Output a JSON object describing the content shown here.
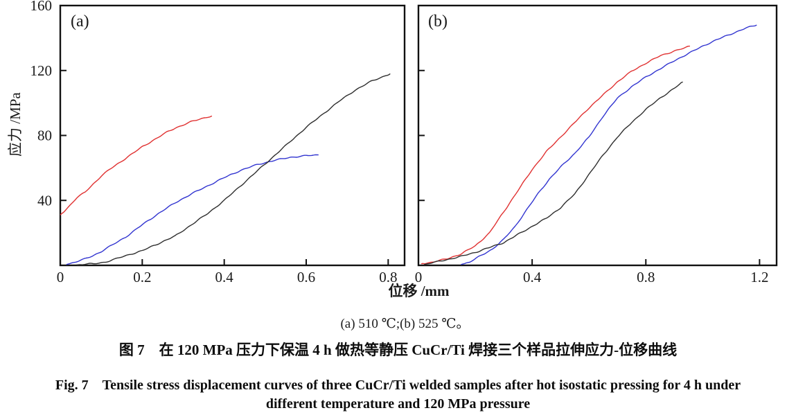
{
  "figure_caption": {
    "subcaption": "(a) 510 ℃;(b) 525 ℃。",
    "caption_zh": "图 7　在 120 MPa 压力下保温 4 h 做热等静压 CuCr/Ti 焊接三个样品拉伸应力-位移曲线",
    "caption_en_line1": "Fig. 7　Tensile stress displacement curves of three CuCr/Ti welded samples after hot isostatic pressing for 4 h under",
    "caption_en_line2": "different temperature and 120 MPa pressure"
  },
  "axes": {
    "ylabel": "应力 /MPa",
    "xlabel": "位移 /mm"
  },
  "colors": {
    "red_curve": "#e03131",
    "blue_curve": "#3134d0",
    "black_curve": "#2e2e2e",
    "axis": "#111111"
  },
  "chart_data": [
    {
      "type": "line",
      "panel": "(a)",
      "condition": "510 ℃",
      "xlabel": "位移 /mm",
      "ylabel": "应力 /MPa",
      "xlim": [
        0,
        0.84
      ],
      "ylim": [
        0,
        160
      ],
      "xticks": [
        0,
        0.2,
        0.4,
        0.6,
        0.8
      ],
      "yticks": [
        40,
        80,
        120,
        160
      ],
      "show_ytick_labels": true,
      "grid": false,
      "legend": "none",
      "series": [
        {
          "name": "red",
          "color": "#e03131",
          "points": [
            [
              0,
              31
            ],
            [
              0.02,
              36
            ],
            [
              0.04,
              41.5
            ],
            [
              0.06,
              45
            ],
            [
              0.08,
              50
            ],
            [
              0.1,
              55
            ],
            [
              0.12,
              59
            ],
            [
              0.14,
              62.5
            ],
            [
              0.16,
              66
            ],
            [
              0.18,
              69.5
            ],
            [
              0.2,
              73
            ],
            [
              0.22,
              76
            ],
            [
              0.24,
              79
            ],
            [
              0.26,
              82
            ],
            [
              0.28,
              84.5
            ],
            [
              0.3,
              86.5
            ],
            [
              0.32,
              88.5
            ],
            [
              0.34,
              90
            ],
            [
              0.36,
              91.5
            ],
            [
              0.37,
              92
            ]
          ]
        },
        {
          "name": "blue",
          "color": "#3134d0",
          "points": [
            [
              0.015,
              0.5
            ],
            [
              0.05,
              3
            ],
            [
              0.08,
              6
            ],
            [
              0.1,
              8.5
            ],
            [
              0.13,
              13
            ],
            [
              0.16,
              17.5
            ],
            [
              0.2,
              25
            ],
            [
              0.24,
              32
            ],
            [
              0.28,
              38.5
            ],
            [
              0.32,
              44
            ],
            [
              0.36,
              49
            ],
            [
              0.4,
              54
            ],
            [
              0.44,
              58.5
            ],
            [
              0.48,
              62
            ],
            [
              0.52,
              64.5
            ],
            [
              0.56,
              66.5
            ],
            [
              0.6,
              67.5
            ],
            [
              0.63,
              68
            ]
          ]
        },
        {
          "name": "black",
          "color": "#2e2e2e",
          "points": [
            [
              0.04,
              0.3
            ],
            [
              0.08,
              1
            ],
            [
              0.11,
              2
            ],
            [
              0.13,
              3.5
            ],
            [
              0.16,
              6
            ],
            [
              0.2,
              9
            ],
            [
              0.24,
              13.5
            ],
            [
              0.28,
              18
            ],
            [
              0.32,
              25
            ],
            [
              0.36,
              32
            ],
            [
              0.4,
              40
            ],
            [
              0.44,
              49
            ],
            [
              0.48,
              58
            ],
            [
              0.52,
              67
            ],
            [
              0.56,
              76
            ],
            [
              0.6,
              85
            ],
            [
              0.64,
              93
            ],
            [
              0.68,
              101
            ],
            [
              0.72,
              108
            ],
            [
              0.76,
              113.5
            ],
            [
              0.79,
              116.5
            ],
            [
              0.805,
              118
            ]
          ]
        }
      ]
    },
    {
      "type": "line",
      "panel": "(b)",
      "condition": "525 ℃",
      "xlabel": "位移 /mm",
      "ylabel": "应力 /MPa",
      "xlim": [
        0,
        1.26
      ],
      "ylim": [
        0,
        160
      ],
      "xticks": [
        0,
        0.4,
        0.8,
        1.2
      ],
      "yticks": [
        40,
        80,
        120,
        160
      ],
      "show_ytick_labels": false,
      "grid": false,
      "legend": "none",
      "series": [
        {
          "name": "red",
          "color": "#e03131",
          "points": [
            [
              0.01,
              1
            ],
            [
              0.05,
              2
            ],
            [
              0.1,
              4
            ],
            [
              0.15,
              7
            ],
            [
              0.2,
              12
            ],
            [
              0.25,
              20
            ],
            [
              0.3,
              33
            ],
            [
              0.35,
              46
            ],
            [
              0.4,
              59
            ],
            [
              0.45,
              70
            ],
            [
              0.5,
              79
            ],
            [
              0.55,
              88
            ],
            [
              0.6,
              97
            ],
            [
              0.65,
              105
            ],
            [
              0.7,
              113
            ],
            [
              0.75,
              119.5
            ],
            [
              0.8,
              124.5
            ],
            [
              0.85,
              129
            ],
            [
              0.9,
              132
            ],
            [
              0.93,
              133.5
            ],
            [
              0.955,
              135
            ]
          ]
        },
        {
          "name": "blue",
          "color": "#3134d0",
          "points": [
            [
              0.15,
              0.5
            ],
            [
              0.18,
              2
            ],
            [
              0.22,
              6
            ],
            [
              0.26,
              10
            ],
            [
              0.3,
              16
            ],
            [
              0.34,
              24
            ],
            [
              0.38,
              34
            ],
            [
              0.42,
              44
            ],
            [
              0.46,
              53
            ],
            [
              0.5,
              60.5
            ],
            [
              0.55,
              69
            ],
            [
              0.6,
              79
            ],
            [
              0.65,
              92
            ],
            [
              0.7,
              103
            ],
            [
              0.75,
              110
            ],
            [
              0.8,
              116
            ],
            [
              0.85,
              121
            ],
            [
              0.9,
              126
            ],
            [
              0.95,
              130.5
            ],
            [
              1.0,
              135
            ],
            [
              1.05,
              139
            ],
            [
              1.1,
              142.5
            ],
            [
              1.15,
              146
            ],
            [
              1.19,
              148
            ]
          ]
        },
        {
          "name": "black",
          "color": "#2e2e2e",
          "points": [
            [
              0.02,
              0.5
            ],
            [
              0.06,
              2
            ],
            [
              0.1,
              3.5
            ],
            [
              0.15,
              5.5
            ],
            [
              0.2,
              8
            ],
            [
              0.25,
              11
            ],
            [
              0.3,
              14
            ],
            [
              0.35,
              19
            ],
            [
              0.4,
              24
            ],
            [
              0.45,
              29
            ],
            [
              0.5,
              35.5
            ],
            [
              0.55,
              44
            ],
            [
              0.6,
              56
            ],
            [
              0.65,
              68
            ],
            [
              0.7,
              79
            ],
            [
              0.75,
              88
            ],
            [
              0.8,
              96
            ],
            [
              0.85,
              103
            ],
            [
              0.9,
              109
            ],
            [
              0.93,
              113
            ]
          ]
        }
      ]
    }
  ]
}
